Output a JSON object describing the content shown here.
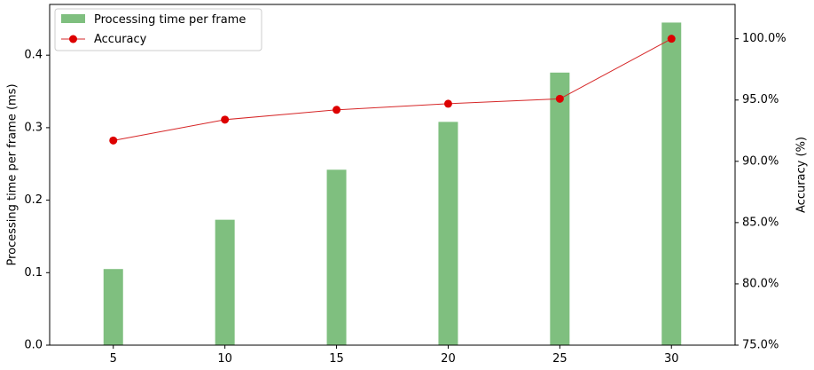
{
  "chart_data": {
    "type": "bar",
    "x": [
      5,
      10,
      15,
      20,
      25,
      30
    ],
    "xticks": [
      "5",
      "10",
      "15",
      "20",
      "25",
      "30"
    ],
    "series": [
      {
        "name": "Processing time per frame",
        "type": "bar",
        "axis": "left",
        "color": "#7fbf7f",
        "values": [
          0.105,
          0.173,
          0.242,
          0.308,
          0.376,
          0.445
        ]
      },
      {
        "name": "Accuracy",
        "type": "line",
        "axis": "right",
        "color": "#d62728",
        "marker_color": "#dd0000",
        "values": [
          91.7,
          93.4,
          94.2,
          94.7,
          95.1,
          100.0
        ]
      }
    ],
    "ylabel_left": "Processing time per frame (ms)",
    "ylabel_right": "Accuracy (%)",
    "ylim_left": [
      0,
      0.47
    ],
    "ylim_right": [
      75,
      102.8
    ],
    "xlim": [
      2.15,
      32.85
    ],
    "yticks_left": [
      0.0,
      0.1,
      0.2,
      0.3,
      0.4
    ],
    "yticks_left_labels": [
      "0.0",
      "0.1",
      "0.2",
      "0.3",
      "0.4"
    ],
    "yticks_right": [
      75,
      80,
      85,
      90,
      95,
      100
    ],
    "yticks_right_labels": [
      "75.0%",
      "80.0%",
      "85.0%",
      "90.0%",
      "95.0%",
      "100.0%"
    ],
    "grid": false,
    "legend_position": "top-left"
  }
}
